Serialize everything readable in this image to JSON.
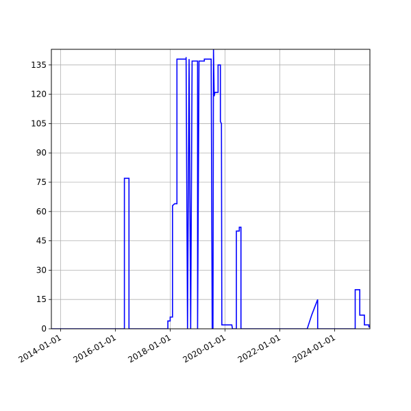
{
  "chart_data": {
    "type": "line",
    "title": "",
    "xlabel": "",
    "ylabel": "",
    "x_axis": {
      "scale": "date",
      "range": [
        "2013-09-01",
        "2025-04-15"
      ],
      "ticks": [
        "2014-01-01",
        "2016-01-01",
        "2018-01-01",
        "2020-01-01",
        "2022-01-01",
        "2024-01-01"
      ]
    },
    "y_axis": {
      "range": [
        0,
        143
      ],
      "ticks": [
        0,
        15,
        30,
        45,
        60,
        75,
        90,
        105,
        120,
        135
      ]
    },
    "grid": true,
    "legend": "none",
    "series": [
      {
        "color": "#0000ff",
        "points": [
          [
            "2013-09-01",
            0
          ],
          [
            "2016-05-01",
            0
          ],
          [
            "2016-05-01",
            77
          ],
          [
            "2016-07-01",
            77
          ],
          [
            "2016-07-01",
            0
          ],
          [
            "2017-12-01",
            0
          ],
          [
            "2017-12-01",
            4
          ],
          [
            "2018-01-01",
            4
          ],
          [
            "2018-01-01",
            6
          ],
          [
            "2018-02-01",
            6
          ],
          [
            "2018-02-01",
            63
          ],
          [
            "2018-03-01",
            64
          ],
          [
            "2018-04-01",
            64
          ],
          [
            "2018-04-01",
            138
          ],
          [
            "2018-08-01",
            138
          ],
          [
            "2018-08-01",
            139
          ],
          [
            "2018-08-20",
            0
          ],
          [
            "2018-09-10",
            138
          ],
          [
            "2018-10-01",
            0
          ],
          [
            "2018-10-20",
            137
          ],
          [
            "2019-01-01",
            137
          ],
          [
            "2019-01-01",
            0
          ],
          [
            "2019-01-20",
            137
          ],
          [
            "2019-04-01",
            137
          ],
          [
            "2019-04-01",
            138
          ],
          [
            "2019-07-01",
            138
          ],
          [
            "2019-07-15",
            0
          ],
          [
            "2019-07-25",
            0
          ],
          [
            "2019-08-01",
            143
          ],
          [
            "2019-08-10",
            119
          ],
          [
            "2019-08-20",
            121
          ],
          [
            "2019-10-01",
            121
          ],
          [
            "2019-10-01",
            135
          ],
          [
            "2019-11-01",
            135
          ],
          [
            "2019-11-01",
            106
          ],
          [
            "2019-11-15",
            105
          ],
          [
            "2019-11-20",
            2
          ],
          [
            "2020-04-01",
            2
          ],
          [
            "2020-04-10",
            0
          ],
          [
            "2020-06-01",
            0
          ],
          [
            "2020-06-01",
            50
          ],
          [
            "2020-07-10",
            50
          ],
          [
            "2020-07-10",
            52
          ],
          [
            "2020-08-01",
            52
          ],
          [
            "2020-08-01",
            0
          ],
          [
            "2023-01-01",
            0
          ],
          [
            "2023-03-01",
            7
          ],
          [
            "2023-05-20",
            15
          ],
          [
            "2023-05-20",
            0
          ],
          [
            "2024-10-01",
            0
          ],
          [
            "2024-10-01",
            20
          ],
          [
            "2024-12-01",
            20
          ],
          [
            "2024-12-01",
            7
          ],
          [
            "2025-02-01",
            7
          ],
          [
            "2025-02-01",
            2
          ],
          [
            "2025-04-01",
            2
          ],
          [
            "2025-04-01",
            1
          ],
          [
            "2025-04-15",
            1
          ]
        ]
      }
    ]
  }
}
